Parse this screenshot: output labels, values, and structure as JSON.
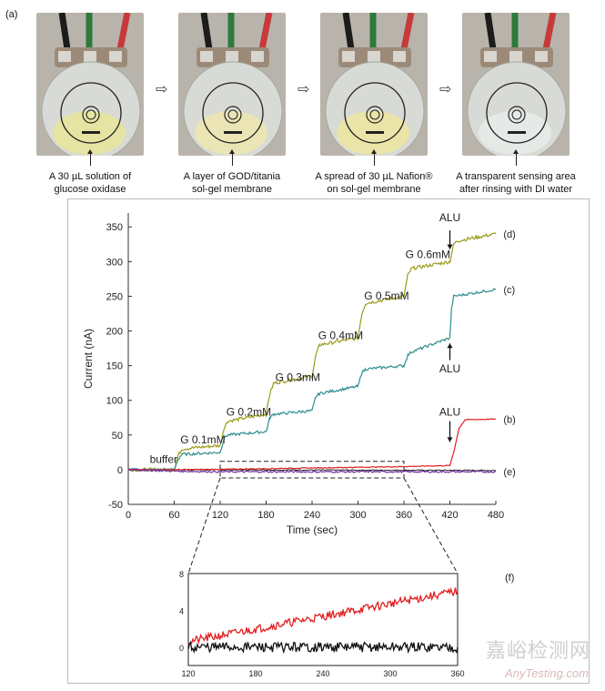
{
  "panel_a_label": "(a)",
  "photos": [
    {
      "caption": "A 30 µL solution of glucose oxidase",
      "film": "#e8e59a"
    },
    {
      "caption": "A layer of GOD/titania sol-gel membrane",
      "film": "#efe6b0"
    },
    {
      "caption": "A spread of 30 µL Nafion® on sol-gel membrane",
      "film": "#eee5a0"
    },
    {
      "caption": "A transparent sensing area after rinsing with DI water",
      "film": "#e9ecea"
    }
  ],
  "photo_captions": [
    [
      "A 30 µL solution of",
      "glucose oxidase"
    ],
    [
      "A layer of GOD/titania",
      "sol-gel membrane"
    ],
    [
      "A spread of 30 µL Nafion®",
      "on sol-gel membrane"
    ],
    [
      "A transparent sensing area",
      "after rinsing with DI water"
    ]
  ],
  "flow_arrow": "⇨",
  "chart_data": [
    {
      "type": "line",
      "xlabel": "Time (sec)",
      "ylabel": "Current (nA)",
      "xlim": [
        0,
        480
      ],
      "ylim": [
        -50,
        370
      ],
      "xticks": [
        0,
        60,
        120,
        180,
        240,
        300,
        360,
        420,
        480
      ],
      "yticks": [
        -50,
        0,
        50,
        100,
        150,
        200,
        250,
        300,
        350
      ],
      "series": [
        {
          "name": "(d)",
          "color": "#9a9a1a",
          "x": [
            0,
            60,
            65,
            70,
            120,
            125,
            130,
            180,
            185,
            190,
            240,
            245,
            250,
            300,
            305,
            310,
            360,
            365,
            370,
            420,
            425,
            430,
            480
          ],
          "y": [
            0,
            0,
            20,
            30,
            35,
            60,
            70,
            80,
            110,
            125,
            135,
            165,
            180,
            190,
            225,
            240,
            250,
            280,
            290,
            300,
            325,
            330,
            340
          ]
        },
        {
          "name": "(c)",
          "color": "#2e8c8c",
          "x": [
            0,
            60,
            65,
            70,
            120,
            125,
            130,
            180,
            185,
            190,
            240,
            245,
            250,
            300,
            305,
            310,
            360,
            365,
            370,
            420,
            422,
            425,
            480
          ],
          "y": [
            0,
            0,
            15,
            22,
            25,
            45,
            50,
            55,
            75,
            80,
            85,
            105,
            110,
            120,
            140,
            145,
            150,
            165,
            170,
            190,
            230,
            250,
            260
          ]
        },
        {
          "name": "(b)",
          "color": "#e02020",
          "x": [
            0,
            60,
            120,
            180,
            240,
            300,
            360,
            420,
            425,
            432,
            440,
            480
          ],
          "y": [
            0,
            0,
            0.5,
            1.5,
            2.5,
            3.5,
            4.5,
            6,
            25,
            60,
            72,
            73
          ]
        },
        {
          "name": "(e)",
          "color": "#7030a0",
          "x": [
            0,
            60,
            120,
            180,
            240,
            300,
            360,
            420,
            480
          ],
          "y": [
            0,
            -2,
            -3,
            -3,
            -3,
            -3,
            -3,
            -3,
            -3
          ]
        }
      ],
      "annotations": [
        {
          "text": "buffer"
        },
        {
          "text": "G 0.1mM"
        },
        {
          "text": "G 0.2mM"
        },
        {
          "text": "G 0.3mM"
        },
        {
          "text": "G 0.4mM"
        },
        {
          "text": "G 0.5mM"
        },
        {
          "text": "G 0.6mM"
        },
        {
          "text": "ALU"
        },
        {
          "text": "ALU"
        },
        {
          "text": "ALU"
        }
      ],
      "series_labels": [
        "(d)",
        "(c)",
        "(b)",
        "(e)"
      ]
    },
    {
      "type": "line",
      "label": "(f)",
      "xlim": [
        120,
        360
      ],
      "ylim": [
        -2,
        8
      ],
      "xticks": [
        120,
        180,
        240,
        300,
        360
      ],
      "yticks": [
        0,
        4,
        8
      ],
      "series": [
        {
          "name": "red",
          "color": "#e02020",
          "x": [
            120,
            360
          ],
          "y": [
            0.6,
            6.1
          ]
        },
        {
          "name": "black",
          "color": "#111111",
          "x": [
            120,
            360
          ],
          "y": [
            0,
            0
          ]
        }
      ]
    }
  ],
  "watermark": {
    "cn": "嘉峪检测网",
    "url": "AnyTesting.com"
  }
}
